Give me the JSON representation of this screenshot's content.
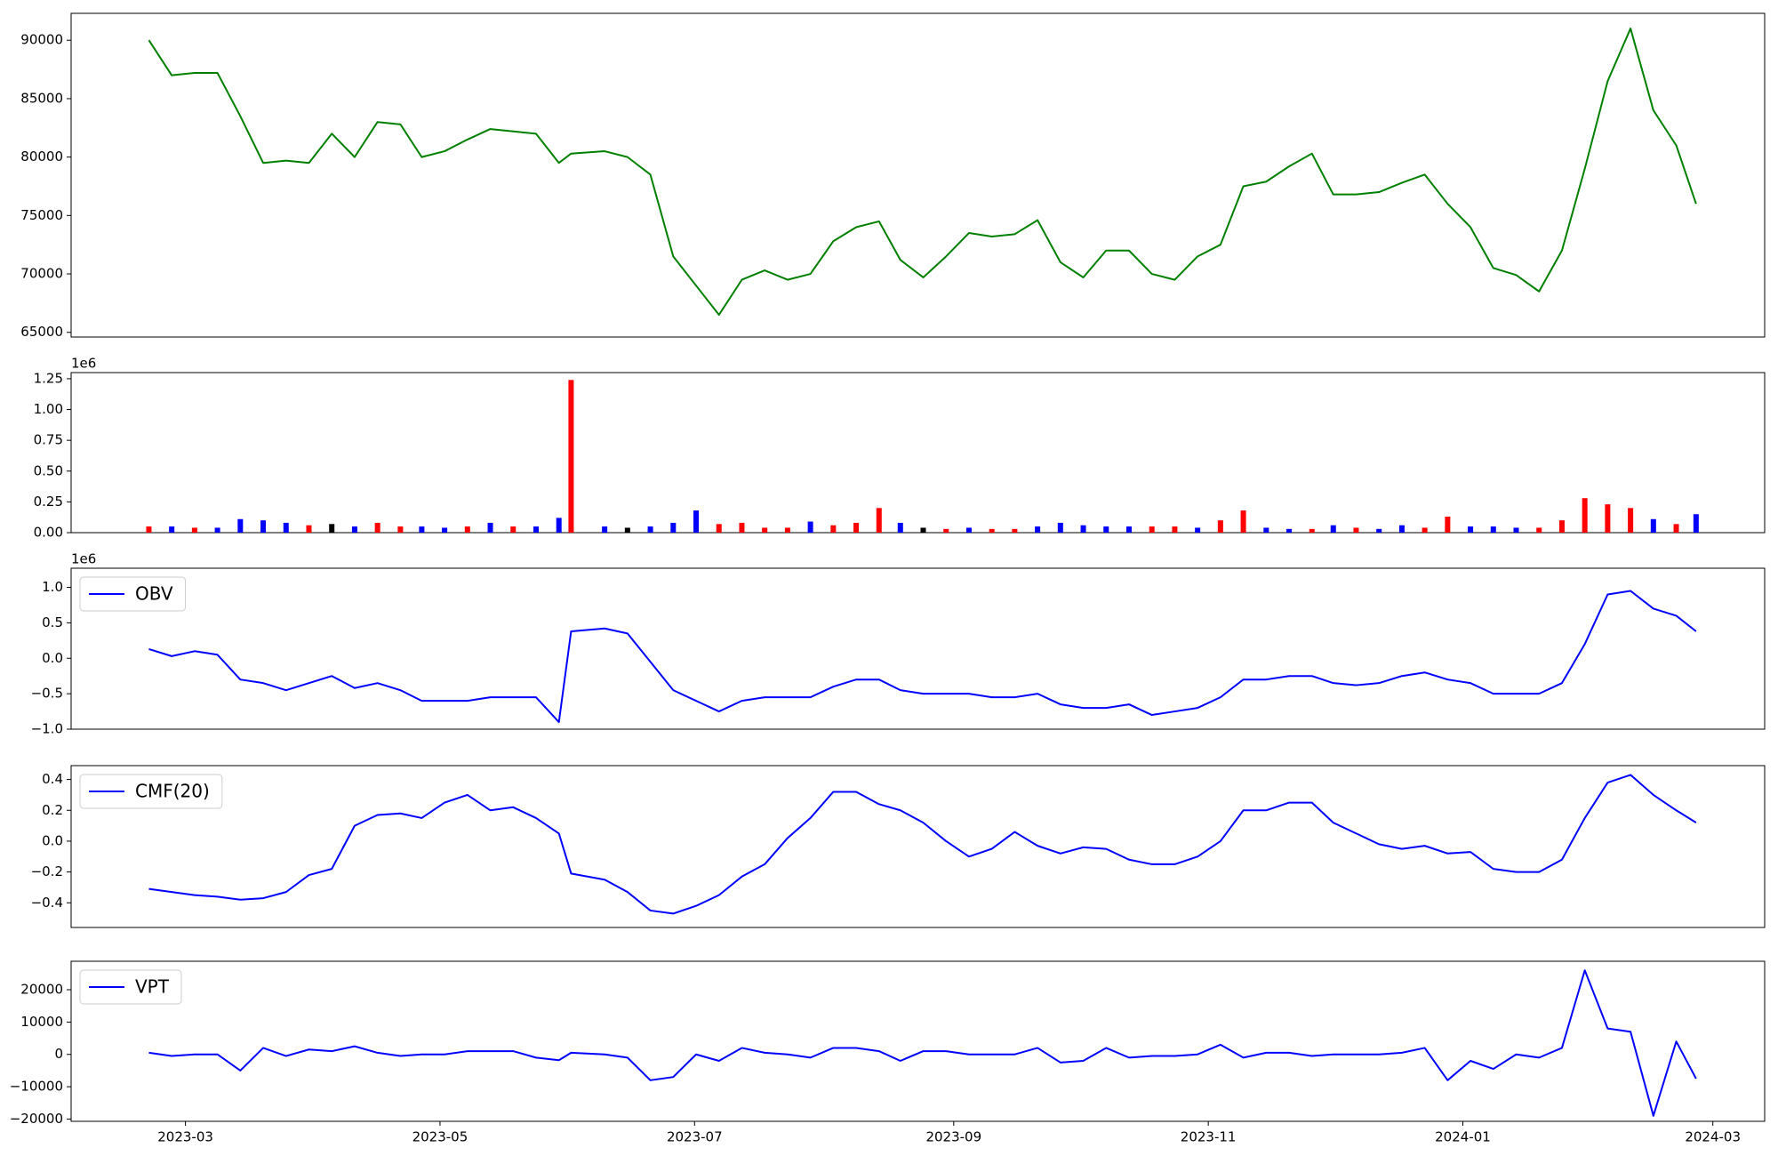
{
  "chart_data": [
    {
      "type": "line",
      "x": [
        2023.138,
        2023.153,
        2023.168,
        2023.183,
        2023.198,
        2023.213,
        2023.228,
        2023.243,
        2023.258,
        2023.273,
        2023.288,
        2023.303,
        2023.317,
        2023.332,
        2023.347,
        2023.362,
        2023.377,
        2023.392,
        2023.407,
        2023.415,
        2023.437,
        2023.452,
        2023.467,
        2023.482,
        2023.497,
        2023.512,
        2023.527,
        2023.542,
        2023.557,
        2023.572,
        2023.587,
        2023.602,
        2023.617,
        2023.631,
        2023.646,
        2023.661,
        2023.676,
        2023.691,
        2023.706,
        2023.721,
        2023.736,
        2023.751,
        2023.766,
        2023.781,
        2023.796,
        2023.811,
        2023.826,
        2023.841,
        2023.856,
        2023.871,
        2023.886,
        2023.901,
        2023.915,
        2023.93,
        2023.945,
        2023.96,
        2023.975,
        2023.99,
        2024.005,
        2024.02,
        2024.035,
        2024.05,
        2024.065,
        2024.08,
        2024.095,
        2024.11,
        2024.125,
        2024.14,
        2024.153
      ],
      "series": [
        {
          "color": "#008000",
          "values": [
            90000,
            87000,
            87200,
            87200,
            83500,
            79500,
            79700,
            79500,
            82000,
            80000,
            83000,
            82800,
            80000,
            80500,
            81500,
            82400,
            82200,
            82000,
            79500,
            80300,
            80500,
            80000,
            78500,
            71500,
            69000,
            66500,
            69500,
            70300,
            69500,
            70000,
            72800,
            74000,
            74500,
            71200,
            69700,
            71500,
            73500,
            73200,
            73400,
            74600,
            71000,
            69700,
            72000,
            72000,
            70000,
            69500,
            71500,
            72500,
            77500,
            77900,
            79200,
            80300,
            76800,
            76800,
            77000,
            77800,
            78500,
            76000,
            74000,
            70500,
            69900,
            68500,
            72000,
            79000,
            86500,
            91000,
            84000,
            81000,
            76000
          ]
        }
      ],
      "xlim": [
        2023.087,
        2024.198
      ],
      "ylim": [
        64600,
        92300
      ],
      "yticks": [
        65000,
        70000,
        75000,
        80000,
        85000,
        90000
      ]
    },
    {
      "type": "bar",
      "y_offset_label": "1e6",
      "x": [
        2023.138,
        2023.153,
        2023.168,
        2023.183,
        2023.198,
        2023.213,
        2023.228,
        2023.243,
        2023.258,
        2023.273,
        2023.288,
        2023.303,
        2023.317,
        2023.332,
        2023.347,
        2023.362,
        2023.377,
        2023.392,
        2023.407,
        2023.415,
        2023.437,
        2023.452,
        2023.467,
        2023.482,
        2023.497,
        2023.512,
        2023.527,
        2023.542,
        2023.557,
        2023.572,
        2023.587,
        2023.602,
        2023.617,
        2023.631,
        2023.646,
        2023.661,
        2023.676,
        2023.691,
        2023.706,
        2023.721,
        2023.736,
        2023.751,
        2023.766,
        2023.781,
        2023.796,
        2023.811,
        2023.826,
        2023.841,
        2023.856,
        2023.871,
        2023.886,
        2023.901,
        2023.915,
        2023.93,
        2023.945,
        2023.96,
        2023.975,
        2023.99,
        2024.005,
        2024.02,
        2024.035,
        2024.05,
        2024.065,
        2024.08,
        2024.095,
        2024.11,
        2024.125,
        2024.14,
        2024.153
      ],
      "values": [
        0.05,
        0.05,
        0.04,
        0.04,
        0.11,
        0.1,
        0.08,
        0.06,
        0.07,
        0.05,
        0.08,
        0.05,
        0.05,
        0.04,
        0.05,
        0.08,
        0.05,
        0.05,
        0.12,
        1.24,
        0.05,
        0.04,
        0.05,
        0.08,
        0.18,
        0.07,
        0.08,
        0.04,
        0.04,
        0.09,
        0.06,
        0.08,
        0.2,
        0.08,
        0.04,
        0.03,
        0.04,
        0.03,
        0.03,
        0.05,
        0.08,
        0.06,
        0.05,
        0.05,
        0.05,
        0.05,
        0.04,
        0.1,
        0.18,
        0.04,
        0.03,
        0.03,
        0.06,
        0.04,
        0.03,
        0.06,
        0.04,
        0.13,
        0.05,
        0.05,
        0.04,
        0.04,
        0.1,
        0.28,
        0.23,
        0.2,
        0.11,
        0.07,
        0.15
      ],
      "colors": [
        "red",
        "blue",
        "red",
        "blue",
        "blue",
        "blue",
        "blue",
        "red",
        "black",
        "blue",
        "red",
        "red",
        "blue",
        "blue",
        "red",
        "blue",
        "red",
        "blue",
        "blue",
        "red",
        "blue",
        "black",
        "blue",
        "blue",
        "blue",
        "red",
        "red",
        "red",
        "red",
        "blue",
        "red",
        "red",
        "red",
        "blue",
        "black",
        "red",
        "blue",
        "red",
        "red",
        "blue",
        "blue",
        "blue",
        "blue",
        "blue",
        "red",
        "red",
        "blue",
        "red",
        "red",
        "blue",
        "blue",
        "red",
        "blue",
        "red",
        "blue",
        "blue",
        "red",
        "red",
        "blue",
        "blue",
        "blue",
        "red",
        "red",
        "red",
        "red",
        "red",
        "blue",
        "red",
        "blue"
      ],
      "xlim": [
        2023.087,
        2024.198
      ],
      "ylim": [
        0,
        1.3
      ],
      "yticks": [
        {
          "value": 0,
          "label": "0.00"
        },
        {
          "value": 0.25,
          "label": "0.25"
        },
        {
          "value": 0.5,
          "label": "0.50"
        },
        {
          "value": 0.75,
          "label": "0.75"
        },
        {
          "value": 1,
          "label": "1.00"
        },
        {
          "value": 1.25,
          "label": "1.25"
        }
      ]
    },
    {
      "type": "line",
      "y_offset_label": "1e6",
      "x": [
        2023.138,
        2023.153,
        2023.168,
        2023.183,
        2023.198,
        2023.213,
        2023.228,
        2023.243,
        2023.258,
        2023.273,
        2023.288,
        2023.303,
        2023.317,
        2023.332,
        2023.347,
        2023.362,
        2023.377,
        2023.392,
        2023.407,
        2023.415,
        2023.437,
        2023.452,
        2023.467,
        2023.482,
        2023.497,
        2023.512,
        2023.527,
        2023.542,
        2023.557,
        2023.572,
        2023.587,
        2023.602,
        2023.617,
        2023.631,
        2023.646,
        2023.661,
        2023.676,
        2023.691,
        2023.706,
        2023.721,
        2023.736,
        2023.751,
        2023.766,
        2023.781,
        2023.796,
        2023.811,
        2023.826,
        2023.841,
        2023.856,
        2023.871,
        2023.886,
        2023.901,
        2023.915,
        2023.93,
        2023.945,
        2023.96,
        2023.975,
        2023.99,
        2024.005,
        2024.02,
        2024.035,
        2024.05,
        2024.065,
        2024.08,
        2024.095,
        2024.11,
        2024.125,
        2024.14,
        2024.153
      ],
      "series": [
        {
          "name": "OBV",
          "color": "#0000ff",
          "values": [
            0.13,
            0.03,
            0.1,
            0.05,
            -0.3,
            -0.35,
            -0.45,
            -0.35,
            -0.25,
            -0.42,
            -0.35,
            -0.45,
            -0.6,
            -0.6,
            -0.6,
            -0.55,
            -0.55,
            -0.55,
            -0.9,
            0.38,
            0.42,
            0.35,
            -0.05,
            -0.45,
            -0.6,
            -0.75,
            -0.6,
            -0.55,
            -0.55,
            -0.55,
            -0.4,
            -0.3,
            -0.3,
            -0.45,
            -0.5,
            -0.5,
            -0.5,
            -0.55,
            -0.55,
            -0.5,
            -0.65,
            -0.7,
            -0.7,
            -0.65,
            -0.8,
            -0.75,
            -0.7,
            -0.55,
            -0.3,
            -0.3,
            -0.25,
            -0.25,
            -0.35,
            -0.38,
            -0.35,
            -0.25,
            -0.2,
            -0.3,
            -0.35,
            -0.5,
            -0.5,
            -0.5,
            -0.35,
            0.2,
            0.9,
            0.95,
            0.7,
            0.6,
            0.38
          ]
        }
      ],
      "xlim": [
        2023.087,
        2024.198
      ],
      "ylim": [
        -1.0,
        1.27
      ],
      "yticks": [
        {
          "value": -1,
          "label": "−1.0"
        },
        {
          "value": -0.5,
          "label": "−0.5"
        },
        {
          "value": 0,
          "label": "0.0"
        },
        {
          "value": 0.5,
          "label": "0.5"
        },
        {
          "value": 1,
          "label": "1.0"
        }
      ]
    },
    {
      "type": "line",
      "x": [
        2023.138,
        2023.153,
        2023.168,
        2023.183,
        2023.198,
        2023.213,
        2023.228,
        2023.243,
        2023.258,
        2023.273,
        2023.288,
        2023.303,
        2023.317,
        2023.332,
        2023.347,
        2023.362,
        2023.377,
        2023.392,
        2023.407,
        2023.415,
        2023.437,
        2023.452,
        2023.467,
        2023.482,
        2023.497,
        2023.512,
        2023.527,
        2023.542,
        2023.557,
        2023.572,
        2023.587,
        2023.602,
        2023.617,
        2023.631,
        2023.646,
        2023.661,
        2023.676,
        2023.691,
        2023.706,
        2023.721,
        2023.736,
        2023.751,
        2023.766,
        2023.781,
        2023.796,
        2023.811,
        2023.826,
        2023.841,
        2023.856,
        2023.871,
        2023.886,
        2023.901,
        2023.915,
        2023.93,
        2023.945,
        2023.96,
        2023.975,
        2023.99,
        2024.005,
        2024.02,
        2024.035,
        2024.05,
        2024.065,
        2024.08,
        2024.095,
        2024.11,
        2024.125,
        2024.14,
        2024.153
      ],
      "series": [
        {
          "name": "CMF(20)",
          "color": "#0000ff",
          "values": [
            -0.31,
            -0.33,
            -0.35,
            -0.36,
            -0.38,
            -0.37,
            -0.33,
            -0.22,
            -0.18,
            0.1,
            0.17,
            0.18,
            0.15,
            0.25,
            0.3,
            0.2,
            0.22,
            0.15,
            0.05,
            -0.21,
            -0.25,
            -0.33,
            -0.45,
            -0.47,
            -0.42,
            -0.35,
            -0.23,
            -0.15,
            0.02,
            0.15,
            0.32,
            0.32,
            0.24,
            0.2,
            0.12,
            0.0,
            -0.1,
            -0.05,
            0.06,
            -0.03,
            -0.08,
            -0.04,
            -0.05,
            -0.12,
            -0.15,
            -0.15,
            -0.1,
            0.0,
            0.2,
            0.2,
            0.25,
            0.25,
            0.12,
            0.05,
            -0.02,
            -0.05,
            -0.03,
            -0.08,
            -0.07,
            -0.18,
            -0.2,
            -0.2,
            -0.12,
            0.15,
            0.38,
            0.43,
            0.3,
            0.2,
            0.12
          ]
        }
      ],
      "xlim": [
        2023.087,
        2024.198
      ],
      "ylim": [
        -0.56,
        0.49
      ],
      "yticks": [
        {
          "value": -0.4,
          "label": "−0.4"
        },
        {
          "value": -0.2,
          "label": "−0.2"
        },
        {
          "value": 0,
          "label": "0.0"
        },
        {
          "value": 0.2,
          "label": "0.2"
        },
        {
          "value": 0.4,
          "label": "0.4"
        }
      ]
    },
    {
      "type": "line",
      "x": [
        2023.138,
        2023.153,
        2023.168,
        2023.183,
        2023.198,
        2023.213,
        2023.228,
        2023.243,
        2023.258,
        2023.273,
        2023.288,
        2023.303,
        2023.317,
        2023.332,
        2023.347,
        2023.362,
        2023.377,
        2023.392,
        2023.407,
        2023.415,
        2023.437,
        2023.452,
        2023.467,
        2023.482,
        2023.497,
        2023.512,
        2023.527,
        2023.542,
        2023.557,
        2023.572,
        2023.587,
        2023.602,
        2023.617,
        2023.631,
        2023.646,
        2023.661,
        2023.676,
        2023.691,
        2023.706,
        2023.721,
        2023.736,
        2023.751,
        2023.766,
        2023.781,
        2023.796,
        2023.811,
        2023.826,
        2023.841,
        2023.856,
        2023.871,
        2023.886,
        2023.901,
        2023.915,
        2023.93,
        2023.945,
        2023.96,
        2023.975,
        2023.99,
        2024.005,
        2024.02,
        2024.035,
        2024.05,
        2024.065,
        2024.08,
        2024.095,
        2024.11,
        2024.125,
        2024.14,
        2024.153
      ],
      "series": [
        {
          "name": "VPT",
          "color": "#0000ff",
          "values": [
            500,
            -500,
            0,
            0,
            -5000,
            2000,
            -500,
            1500,
            1000,
            2500,
            500,
            -500,
            0,
            0,
            1000,
            1000,
            1000,
            -1000,
            -1800,
            500,
            0,
            -1000,
            -8000,
            -7000,
            0,
            -2000,
            2000,
            500,
            0,
            -1000,
            2000,
            2000,
            1000,
            -2000,
            1000,
            1000,
            0,
            0,
            0,
            2000,
            -2500,
            -2000,
            2000,
            -1000,
            -500,
            -500,
            0,
            3000,
            -1000,
            500,
            500,
            -500,
            0,
            0,
            0,
            500,
            2000,
            -8000,
            -2000,
            -4500,
            0,
            -1000,
            2000,
            26000,
            8000,
            7000,
            -19000,
            4000,
            -7500
          ]
        }
      ],
      "xlim": [
        2023.087,
        2024.198
      ],
      "ylim": [
        -20700,
        28800
      ],
      "yticks": [
        {
          "value": -20000,
          "label": "−20000"
        },
        {
          "value": -10000,
          "label": "−10000"
        },
        0,
        10000,
        20000
      ],
      "xticks": [
        {
          "value": 2023.162,
          "label": "2023-03"
        },
        {
          "value": 2023.329,
          "label": "2023-05"
        },
        {
          "value": 2023.496,
          "label": "2023-07"
        },
        {
          "value": 2023.666,
          "label": "2023-09"
        },
        {
          "value": 2023.833,
          "label": "2023-11"
        },
        {
          "value": 2024.0,
          "label": "2024-01"
        },
        {
          "value": 2024.164,
          "label": "2024-03"
        }
      ]
    }
  ]
}
